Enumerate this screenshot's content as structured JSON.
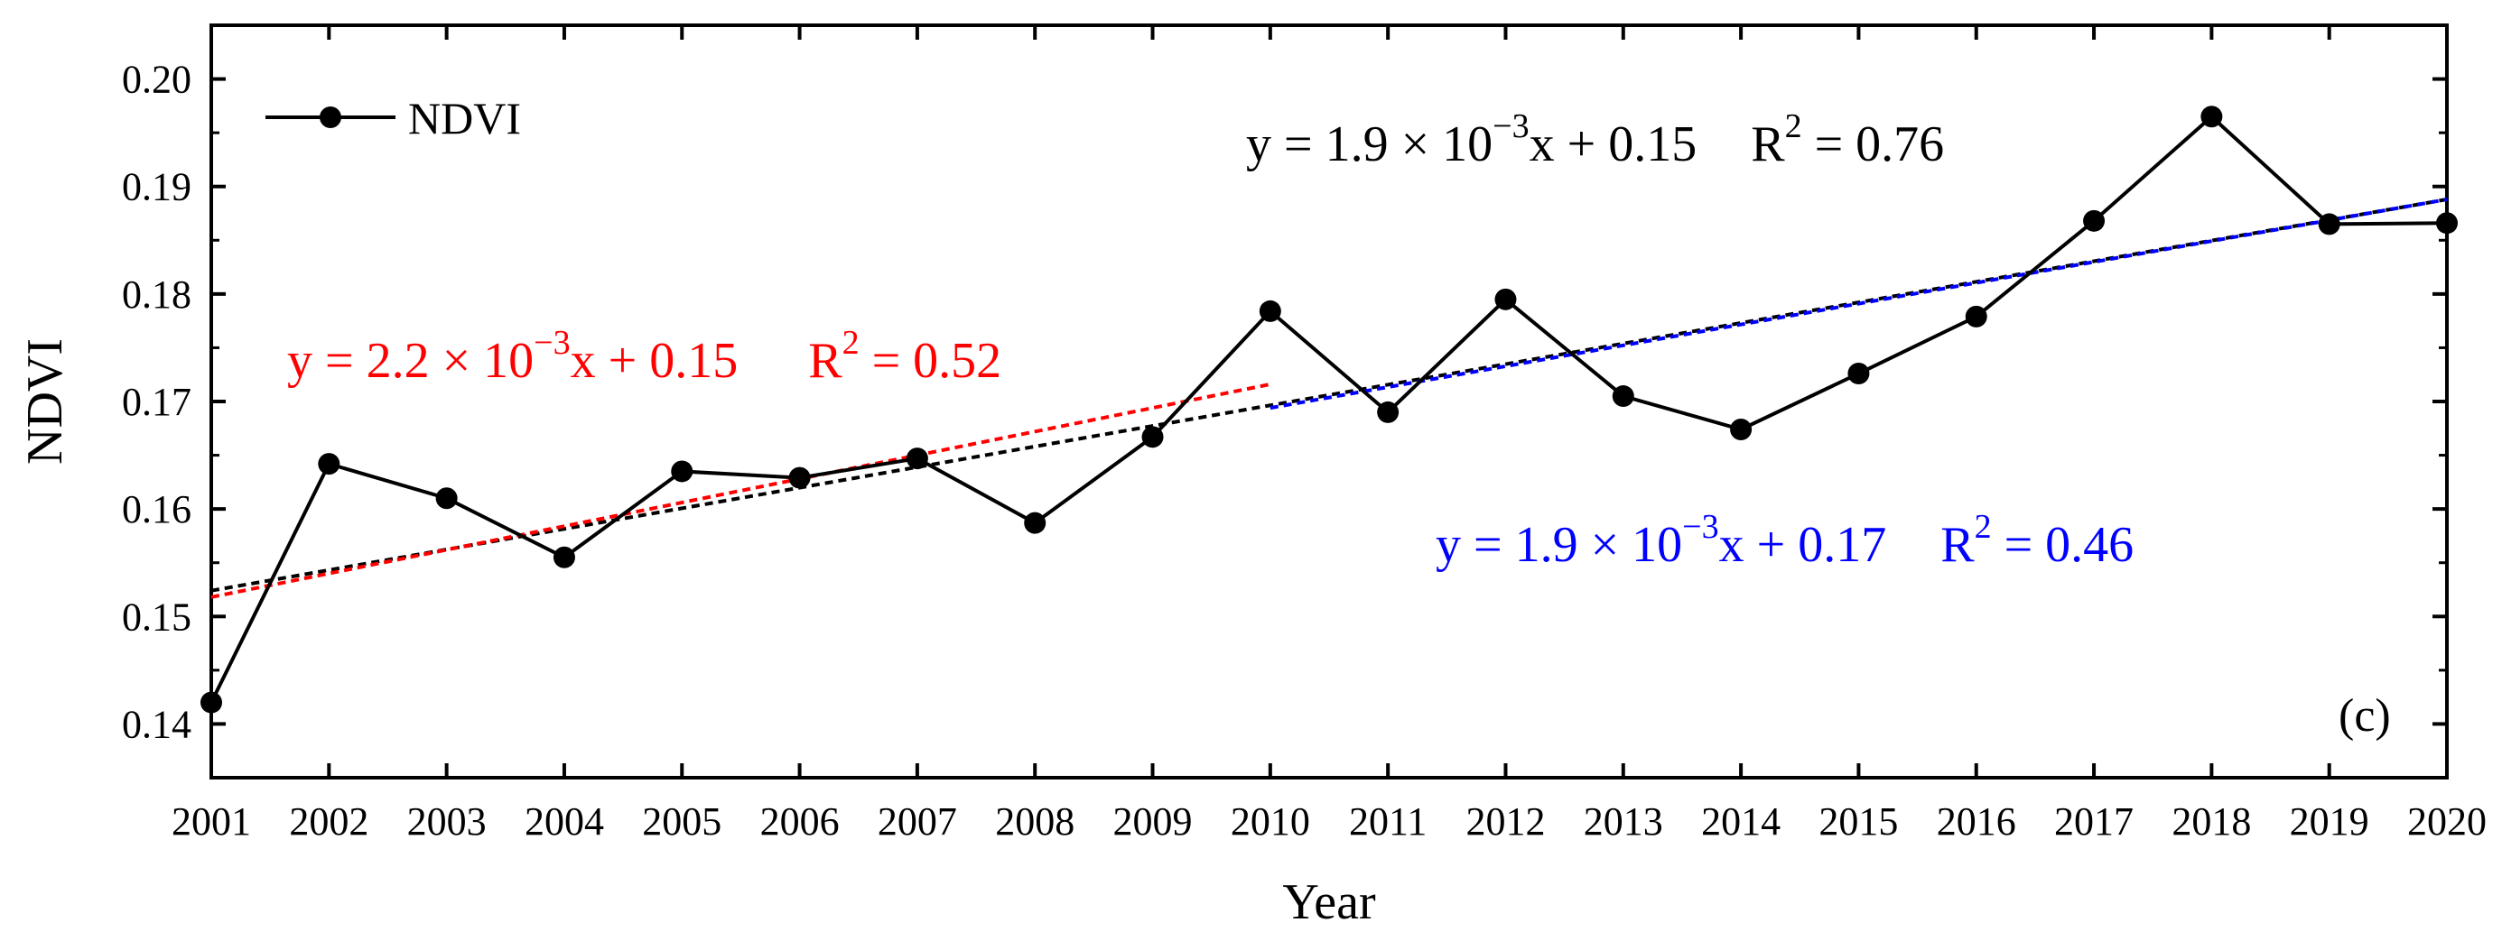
{
  "chart_data": {
    "type": "line",
    "xlabel": "Year",
    "ylabel": "NDVI",
    "xlim": [
      2001,
      2020
    ],
    "ylim": [
      0.135,
      0.205
    ],
    "x_ticks": [
      "2001",
      "2002",
      "2003",
      "2004",
      "2005",
      "2006",
      "2007",
      "2008",
      "2009",
      "2010",
      "2011",
      "2012",
      "2013",
      "2014",
      "2015",
      "2016",
      "2017",
      "2018",
      "2019",
      "2020"
    ],
    "y_ticks": [
      "0.14",
      "0.15",
      "0.16",
      "0.17",
      "0.18",
      "0.19",
      "0.20"
    ],
    "legend": {
      "label": "NDVI",
      "position": "top-left"
    },
    "panel_label": "(c)",
    "series": [
      {
        "name": "NDVI",
        "color": "#000000",
        "x": [
          2001,
          2002,
          2003,
          2004,
          2005,
          2006,
          2007,
          2008,
          2009,
          2010,
          2011,
          2012,
          2013,
          2014,
          2015,
          2016,
          2017,
          2018,
          2019,
          2020
        ],
        "y": [
          0.142,
          0.1642,
          0.161,
          0.1555,
          0.1635,
          0.1629,
          0.1647,
          0.1587,
          0.1667,
          0.1784,
          0.169,
          0.1795,
          0.1705,
          0.1674,
          0.1726,
          0.1779,
          0.1868,
          0.1965,
          0.1865,
          0.1866
        ]
      }
    ],
    "trend_lines": [
      {
        "name": "overall trend",
        "color": "#000000",
        "x": [
          2001,
          2020
        ],
        "y": [
          0.1524,
          0.1888
        ],
        "equation": {
          "prefix": "y = 1.9 × 10",
          "exp": "−3",
          "suffix": "x + 0.15",
          "r2_prefix": "R",
          "r2_exp": "2",
          "r2_suffix": " = 0.76"
        }
      },
      {
        "name": "2001-2010 trend",
        "color": "#ff0000",
        "x": [
          2001,
          2010
        ],
        "y": [
          0.1518,
          0.1716
        ],
        "equation": {
          "prefix": "y = 2.2 × 10",
          "exp": "−3",
          "suffix": "x + 0.15",
          "r2_prefix": "R",
          "r2_exp": "2",
          "r2_suffix": " = 0.52"
        }
      },
      {
        "name": "2010-2020 trend",
        "color": "#0000ff",
        "x": [
          2010,
          2020
        ],
        "y": [
          0.1694,
          0.1888
        ],
        "equation": {
          "prefix": "y = 1.9 × 10",
          "exp": "−3",
          "suffix": "x + 0.17",
          "r2_prefix": "R",
          "r2_exp": "2",
          "r2_suffix": " = 0.46"
        }
      }
    ]
  }
}
